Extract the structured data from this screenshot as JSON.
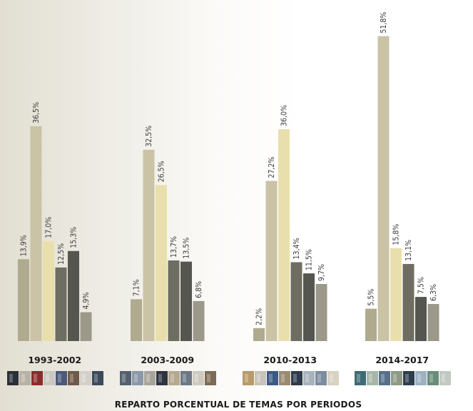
{
  "chart_data": {
    "type": "bar",
    "title": "REPARTO PORCENTUAL DE TEMAS POR PERIODOS",
    "ylim": [
      0,
      55
    ],
    "grid": false,
    "legend": "none",
    "colors": [
      "#b0aa8e",
      "#cbc3a6",
      "#e9dfac",
      "#6d6d62",
      "#565650",
      "#9c998a"
    ],
    "groups": [
      {
        "name": "1993-2002",
        "values": [
          13.9,
          36.5,
          17.0,
          12.5,
          15.3,
          4.9
        ],
        "labels": [
          "13,9%",
          "36,5%",
          "17,0%",
          "12,5%",
          "15,3%",
          "4,9%"
        ]
      },
      {
        "name": "2003-2009",
        "values": [
          7.1,
          32.5,
          26.5,
          13.7,
          13.5,
          6.8
        ],
        "labels": [
          "7,1%",
          "32,5%",
          "26,5%",
          "13,7%",
          "13,5%",
          "6,8%"
        ]
      },
      {
        "name": "2010-2013",
        "values": [
          2.2,
          27.2,
          36.0,
          13.4,
          11.5,
          9.7
        ],
        "labels": [
          "2,2%",
          "27,2%",
          "36,0%",
          "13,4%",
          "11,5%",
          "9,7%"
        ]
      },
      {
        "name": "2014-2017",
        "values": [
          5.5,
          51.8,
          15.8,
          13.1,
          7.5,
          6.3
        ],
        "labels": [
          "5,5%",
          "51,8%",
          "15,8%",
          "13,1%",
          "7,5%",
          "6,3%"
        ]
      }
    ]
  },
  "thumbnail_strip": {
    "palettes": [
      [
        "#2b2f38",
        "#b8b2a6",
        "#8c2b2b",
        "#c9c7c2",
        "#4a5a78",
        "#6f5a4a",
        "#d3d0c8",
        "#3d4a5a"
      ],
      [
        "#55606e",
        "#8a98a8",
        "#a7a49b",
        "#2e3440",
        "#b6a98f",
        "#6d7885",
        "#cfcac0",
        "#7d6b55"
      ],
      [
        "#b89b6a",
        "#c7c3ba",
        "#3c5a86",
        "#9a8a70",
        "#2f3a4a",
        "#a8b2bc",
        "#7b8d9e",
        "#d8d2c2"
      ],
      [
        "#3f6a75",
        "#a7b6a8",
        "#57708a",
        "#8e9a86",
        "#2c3e4d",
        "#9fb2c2",
        "#6a8c7a",
        "#c2c9c2"
      ]
    ]
  }
}
